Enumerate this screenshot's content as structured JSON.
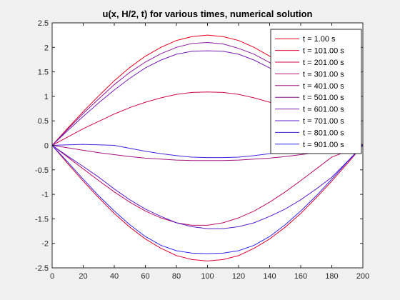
{
  "chart_data": {
    "type": "line",
    "title": "u(x, H/2, t) for various times, numerical solution",
    "xlabel": "",
    "ylabel": "",
    "xlim": [
      0,
      200
    ],
    "ylim": [
      -2.5,
      2.5
    ],
    "xticks": [
      0,
      20,
      40,
      60,
      80,
      100,
      120,
      140,
      160,
      180,
      200
    ],
    "yticks": [
      -2.5,
      -2,
      -1.5,
      -1,
      -0.5,
      0,
      0.5,
      1,
      1.5,
      2,
      2.5
    ],
    "xtick_labels": [
      "0",
      "20",
      "40",
      "60",
      "80",
      "100",
      "120",
      "140",
      "160",
      "180",
      "200"
    ],
    "ytick_labels": [
      "-2.5",
      "-2",
      "-1.5",
      "-1",
      "-0.5",
      "0",
      "0.5",
      "1",
      "1.5",
      "2",
      "2.5"
    ],
    "grid": false,
    "legend_position": "top-right",
    "x": [
      0,
      10,
      20,
      30,
      40,
      50,
      60,
      70,
      80,
      90,
      100,
      110,
      120,
      130,
      140,
      150,
      160,
      170,
      180,
      190,
      200
    ],
    "series": [
      {
        "name": "t = 1.00 s",
        "color": "#e8001c",
        "values": [
          0,
          0.35,
          0.69,
          1.01,
          1.32,
          1.59,
          1.82,
          2.0,
          2.14,
          2.22,
          2.25,
          2.22,
          2.14,
          2.0,
          1.82,
          1.59,
          1.32,
          1.01,
          0.69,
          0.35,
          0
        ]
      },
      {
        "name": "t = 101.00 s",
        "color": "#dc0533",
        "values": [
          0,
          -0.37,
          -0.73,
          -1.07,
          -1.39,
          -1.67,
          -1.91,
          -2.1,
          -2.25,
          -2.33,
          -2.36,
          -2.33,
          -2.25,
          -2.1,
          -1.91,
          -1.67,
          -1.39,
          -1.07,
          -0.73,
          -0.37,
          0
        ]
      },
      {
        "name": "t = 201.00 s",
        "color": "#cc0a4d",
        "values": [
          0,
          0.17,
          0.34,
          0.49,
          0.64,
          0.77,
          0.88,
          0.97,
          1.04,
          1.08,
          1.09,
          1.08,
          1.04,
          0.97,
          0.88,
          0.77,
          0.64,
          0.49,
          0.34,
          0.17,
          0
        ]
      },
      {
        "name": "t = 301.00 s",
        "color": "#b80f66",
        "values": [
          0,
          -0.24,
          -0.48,
          -0.72,
          -0.95,
          -1.16,
          -1.34,
          -1.48,
          -1.58,
          -1.63,
          -1.63,
          -1.58,
          -1.48,
          -1.34,
          -1.16,
          -0.95,
          -0.72,
          -0.48,
          -0.24,
          -0.12,
          0
        ]
      },
      {
        "name": "t = 401.00 s",
        "color": "#a1137f",
        "values": [
          0,
          -0.05,
          -0.1,
          -0.15,
          -0.19,
          -0.23,
          -0.26,
          -0.28,
          -0.3,
          -0.31,
          -0.31,
          -0.31,
          -0.3,
          -0.28,
          -0.26,
          -0.23,
          -0.19,
          -0.15,
          -0.1,
          -0.05,
          0
        ]
      },
      {
        "name": "t = 501.00 s",
        "color": "#8a1898",
        "values": [
          0,
          0.33,
          0.65,
          0.95,
          1.24,
          1.49,
          1.7,
          1.87,
          2.0,
          2.08,
          2.1,
          2.07,
          1.98,
          1.86,
          1.69,
          1.48,
          1.23,
          0.95,
          0.65,
          0.33,
          0
        ]
      },
      {
        "name": "t = 601.00 s",
        "color": "#731cb0",
        "values": [
          0,
          0.3,
          0.59,
          0.87,
          1.13,
          1.37,
          1.58,
          1.74,
          1.86,
          1.92,
          1.93,
          1.92,
          1.86,
          1.74,
          1.58,
          1.37,
          1.13,
          0.87,
          0.59,
          0.3,
          0
        ]
      },
      {
        "name": "t = 701.00 s",
        "color": "#5c20c8",
        "values": [
          0,
          -0.22,
          -0.43,
          -0.65,
          -0.89,
          -1.11,
          -1.3,
          -1.45,
          -1.58,
          -1.66,
          -1.7,
          -1.7,
          -1.66,
          -1.58,
          -1.45,
          -1.3,
          -1.11,
          -0.89,
          -0.65,
          -0.33,
          0
        ]
      },
      {
        "name": "t = 801.00 s",
        "color": "#4524de",
        "values": [
          0,
          0.01,
          0.02,
          0.01,
          0.0,
          -0.06,
          -0.12,
          -0.17,
          -0.21,
          -0.24,
          -0.25,
          -0.25,
          -0.24,
          -0.21,
          -0.17,
          -0.12,
          -0.06,
          -0.01,
          0.0,
          0.01,
          0
        ]
      },
      {
        "name": "t = 901.00 s",
        "color": "#2e28f0",
        "values": [
          0,
          -0.34,
          -0.69,
          -1.03,
          -1.34,
          -1.62,
          -1.86,
          -2.04,
          -2.15,
          -2.2,
          -2.21,
          -2.2,
          -2.15,
          -2.04,
          -1.86,
          -1.62,
          -1.34,
          -1.03,
          -0.69,
          -0.34,
          0
        ]
      }
    ]
  }
}
